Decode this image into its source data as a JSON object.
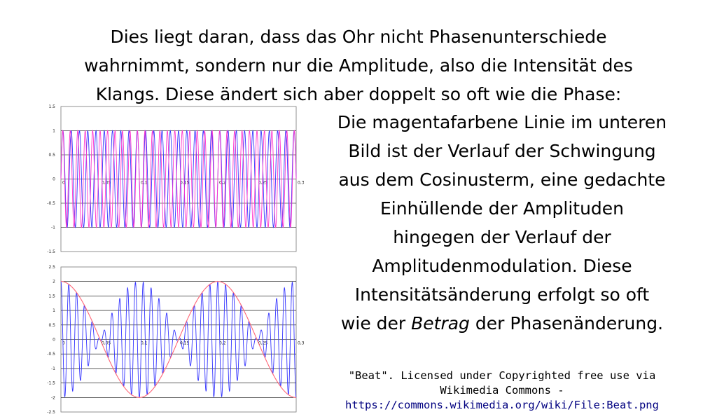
{
  "intro_lines": [
    "Dies liegt daran, dass das Ohr nicht Phasenunterschiede",
    "wahrnimmt, sondern nur die Amplitude, also die Intensität des",
    "Klangs. Diese ändert sich aber doppelt so oft wie die Phase:"
  ],
  "body_lines": {
    "l1": "Die magentafarbene Linie im unteren",
    "l2": "Bild ist der Verlauf der Schwingung",
    "l3": "aus dem Cosinusterm, eine gedachte",
    "l4": "Einhüllende der Amplituden",
    "l5": "hingegen der Verlauf der",
    "l6": "Amplitudenmodulation. Diese",
    "l7": "Intensitätsänderung erfolgt so oft",
    "l8_pre": "wie der ",
    "l8_em": "Betrag",
    "l8_post": " der Phasenänderung."
  },
  "credit": {
    "line1": "\"Beat\". Licensed under Copyrighted free use via",
    "line2": "Wikimedia Commons -",
    "url": "https://commons.wikimedia.org/wiki/File:Beat.png"
  },
  "colors": {
    "wave_blue": "#3333ff",
    "wave_magenta": "#ff33cc",
    "envelope": "#ff6677",
    "grid": "#000000"
  },
  "chart_data": [
    {
      "type": "line",
      "title": "",
      "xlabel": "",
      "ylabel": "",
      "xlim": [
        0,
        0.3
      ],
      "ylim": [
        -1.5,
        1.5
      ],
      "x_ticks": [
        "0",
        "0,05",
        "0,1",
        "0,15",
        "0,2",
        "0,25",
        "0,3"
      ],
      "y_ticks": [
        "1.5",
        "1",
        "0.5",
        "0",
        "-0.5",
        "-1",
        "-1.5"
      ],
      "grid": true,
      "series": [
        {
          "function": "sin",
          "frequency_hz": 95,
          "amplitude": 1,
          "color": "#3333ff"
        },
        {
          "function": "sin",
          "frequency_hz": 105,
          "amplitude": 1,
          "color": "#ff33cc"
        }
      ]
    },
    {
      "type": "line",
      "title": "",
      "xlabel": "",
      "ylabel": "",
      "xlim": [
        0,
        0.3
      ],
      "ylim": [
        -2.5,
        2.5
      ],
      "x_ticks": [
        "0",
        "0,05",
        "0,1",
        "0,15",
        "0,2",
        "0,25",
        "0,3"
      ],
      "y_ticks": [
        "2.5",
        "2",
        "1.5",
        "1",
        "0.5",
        "0",
        "-0.5",
        "-1",
        "-1.5",
        "-2",
        "-2.5"
      ],
      "grid": true,
      "series": [
        {
          "function": "sum_of_sines",
          "frequencies_hz": [
            95,
            105
          ],
          "color": "#3333ff"
        },
        {
          "function": "cos_envelope",
          "amplitude": 2,
          "frequency_hz": 5,
          "color": "#ff6677"
        }
      ]
    }
  ]
}
